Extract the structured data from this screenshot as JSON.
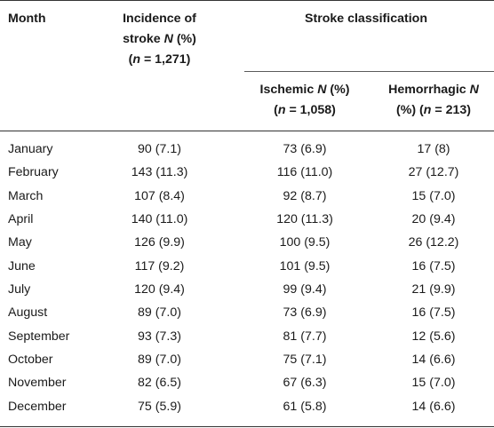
{
  "header": {
    "month": "Month",
    "incidence": {
      "line1": "Incidence of",
      "line2_pre": "stroke ",
      "line2_em": "N",
      "line2_post": " (%)",
      "line3_pre": "(",
      "line3_em": "n",
      "line3_post": " = 1,271)"
    },
    "stroke_classification": "Stroke classification",
    "ischemic": {
      "line1_pre": "Ischemic ",
      "line1_em": "N",
      "line1_post": " (%)",
      "line2_pre": "(",
      "line2_em": "n",
      "line2_post": " = 1,058)"
    },
    "hemorrhagic": {
      "line1_pre": "Hemorrhagic ",
      "line1_em": "N",
      "line2_pre": "(%) (",
      "line2_em": "n",
      "line2_post": " = 213)"
    }
  },
  "rows": [
    {
      "month": "January",
      "incidence": "90 (7.1)",
      "ischemic": "73 (6.9)",
      "hemorrhagic": "17 (8)"
    },
    {
      "month": "February",
      "incidence": "143 (11.3)",
      "ischemic": "116 (11.0)",
      "hemorrhagic": "27 (12.7)"
    },
    {
      "month": "March",
      "incidence": "107 (8.4)",
      "ischemic": "92 (8.7)",
      "hemorrhagic": "15 (7.0)"
    },
    {
      "month": "April",
      "incidence": "140 (11.0)",
      "ischemic": "120 (11.3)",
      "hemorrhagic": "20 (9.4)"
    },
    {
      "month": "May",
      "incidence": "126 (9.9)",
      "ischemic": "100 (9.5)",
      "hemorrhagic": "26 (12.2)"
    },
    {
      "month": "June",
      "incidence": "117 (9.2)",
      "ischemic": "101 (9.5)",
      "hemorrhagic": "16 (7.5)"
    },
    {
      "month": "July",
      "incidence": "120 (9.4)",
      "ischemic": "99 (9.4)",
      "hemorrhagic": "21 (9.9)"
    },
    {
      "month": "August",
      "incidence": "89 (7.0)",
      "ischemic": "73 (6.9)",
      "hemorrhagic": "16 (7.5)"
    },
    {
      "month": "September",
      "incidence": "93 (7.3)",
      "ischemic": "81 (7.7)",
      "hemorrhagic": "12 (5.6)"
    },
    {
      "month": "October",
      "incidence": "89 (7.0)",
      "ischemic": "75 (7.1)",
      "hemorrhagic": "14 (6.6)"
    },
    {
      "month": "November",
      "incidence": "82 (6.5)",
      "ischemic": "67 (6.3)",
      "hemorrhagic": "15 (7.0)"
    },
    {
      "month": "December",
      "incidence": "75 (5.9)",
      "ischemic": "61 (5.8)",
      "hemorrhagic": "14 (6.6)"
    }
  ]
}
